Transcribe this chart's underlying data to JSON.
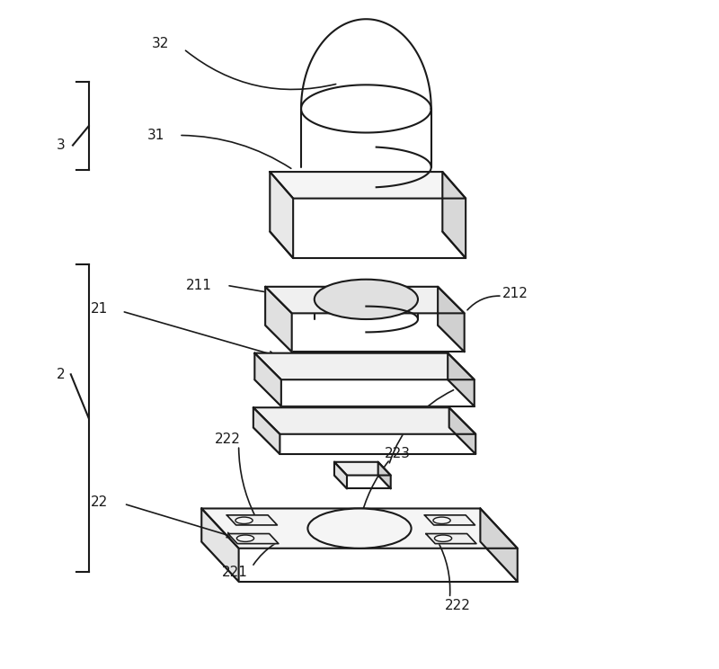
{
  "background_color": "#ffffff",
  "line_color": "#1a1a1a",
  "line_width": 1.5
}
